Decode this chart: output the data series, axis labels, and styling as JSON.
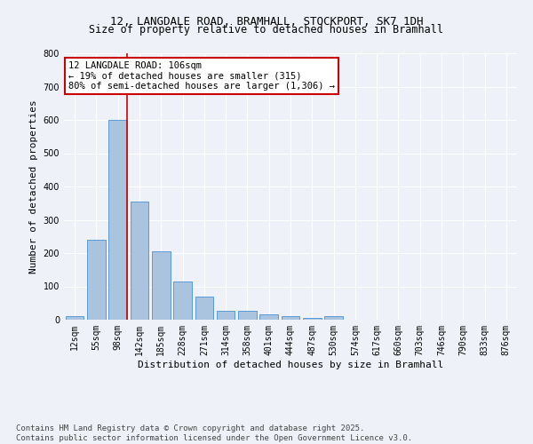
{
  "title_line1": "12, LANGDALE ROAD, BRAMHALL, STOCKPORT, SK7 1DH",
  "title_line2": "Size of property relative to detached houses in Bramhall",
  "xlabel": "Distribution of detached houses by size in Bramhall",
  "ylabel": "Number of detached properties",
  "categories": [
    "12sqm",
    "55sqm",
    "98sqm",
    "142sqm",
    "185sqm",
    "228sqm",
    "271sqm",
    "314sqm",
    "358sqm",
    "401sqm",
    "444sqm",
    "487sqm",
    "530sqm",
    "574sqm",
    "617sqm",
    "660sqm",
    "703sqm",
    "746sqm",
    "790sqm",
    "833sqm",
    "876sqm"
  ],
  "bar_values": [
    10,
    240,
    600,
    355,
    205,
    115,
    70,
    28,
    28,
    15,
    10,
    5,
    10,
    0,
    0,
    0,
    0,
    0,
    0,
    0,
    0
  ],
  "bar_color": "#aac4e0",
  "bar_edge_color": "#5b9bd5",
  "vline_x": 2.43,
  "vline_color": "#cc0000",
  "annotation_text": "12 LANGDALE ROAD: 106sqm\n← 19% of detached houses are smaller (315)\n80% of semi-detached houses are larger (1,306) →",
  "annotation_box_color": "#ffffff",
  "annotation_box_edge_color": "#cc0000",
  "ylim": [
    0,
    800
  ],
  "yticks": [
    0,
    100,
    200,
    300,
    400,
    500,
    600,
    700,
    800
  ],
  "background_color": "#eef2f8",
  "grid_color": "#ffffff",
  "footer_line1": "Contains HM Land Registry data © Crown copyright and database right 2025.",
  "footer_line2": "Contains public sector information licensed under the Open Government Licence v3.0.",
  "title_fontsize": 9,
  "subtitle_fontsize": 8.5,
  "axis_label_fontsize": 8,
  "tick_fontsize": 7,
  "annotation_fontsize": 7.5,
  "footer_fontsize": 6.5
}
